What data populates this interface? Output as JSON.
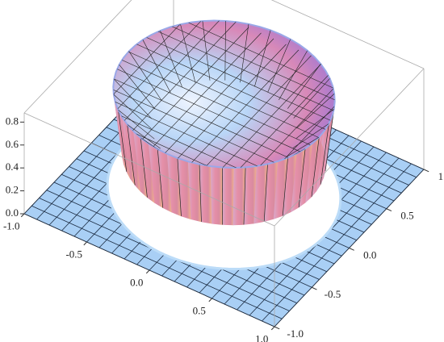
{
  "chart_data": {
    "type": "surface3d",
    "xlim": [
      -1,
      1
    ],
    "ylim": [
      -1,
      1
    ],
    "zlim": [
      0,
      0.88
    ],
    "xticks": [
      {
        "value": -1,
        "label": "-1.0"
      },
      {
        "value": -0.5,
        "label": "-0.5"
      },
      {
        "value": 0,
        "label": "0.0"
      },
      0.5,
      {
        "value": 1,
        "label": "1.0"
      }
    ],
    "yticks": [
      {
        "value": -1,
        "label": "-1.0"
      },
      {
        "value": -0.5,
        "label": "-0.5"
      },
      {
        "value": 0,
        "label": "0.0"
      },
      0.5,
      {
        "value": 1,
        "label": "1.0"
      }
    ],
    "zticks": [
      {
        "value": 0,
        "label": "0.0"
      },
      0.2,
      0.4,
      0.6,
      0.8
    ]
  }
}
